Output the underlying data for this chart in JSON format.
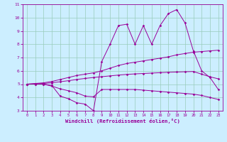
{
  "bg_color": "#cceeff",
  "line_color": "#990099",
  "grid_color": "#99ccbb",
  "xlim": [
    -0.5,
    23.5
  ],
  "ylim": [
    3,
    11
  ],
  "xticks": [
    0,
    1,
    2,
    3,
    4,
    5,
    6,
    7,
    8,
    9,
    10,
    11,
    12,
    13,
    14,
    15,
    16,
    17,
    18,
    19,
    20,
    21,
    22,
    23
  ],
  "yticks": [
    3,
    4,
    5,
    6,
    7,
    8,
    9,
    10,
    11
  ],
  "xlabel": "Windchill (Refroidissement éolien,°C)",
  "s1_x": [
    0,
    1,
    2,
    3,
    4,
    5,
    6,
    7,
    8,
    9,
    10,
    11,
    12,
    13,
    14,
    15,
    16,
    17,
    18,
    19,
    20,
    21,
    22,
    23
  ],
  "s1_y": [
    5.0,
    5.0,
    5.0,
    4.85,
    4.65,
    4.5,
    4.35,
    4.1,
    4.05,
    4.6,
    4.6,
    4.6,
    4.6,
    4.6,
    4.55,
    4.5,
    4.45,
    4.4,
    4.35,
    4.3,
    4.25,
    4.15,
    4.0,
    3.85
  ],
  "s2_x": [
    0,
    1,
    2,
    3,
    4,
    5,
    6,
    7,
    8,
    9,
    10,
    11,
    12,
    13,
    14,
    15,
    16,
    17,
    18,
    19,
    20,
    21,
    22,
    23
  ],
  "s2_y": [
    5.0,
    5.0,
    5.0,
    4.9,
    4.1,
    3.9,
    3.6,
    3.5,
    3.0,
    6.7,
    8.0,
    9.4,
    9.5,
    8.0,
    9.4,
    8.0,
    9.4,
    10.3,
    10.6,
    9.6,
    7.5,
    6.0,
    5.5,
    4.6
  ],
  "s3_x": [
    0,
    1,
    2,
    3,
    4,
    5,
    6,
    7,
    8,
    9,
    10,
    11,
    12,
    13,
    14,
    15,
    16,
    17,
    18,
    19,
    20,
    21,
    22,
    23
  ],
  "s3_y": [
    5.0,
    5.05,
    5.1,
    5.2,
    5.35,
    5.5,
    5.65,
    5.75,
    5.85,
    6.0,
    6.2,
    6.4,
    6.55,
    6.65,
    6.75,
    6.85,
    6.95,
    7.05,
    7.2,
    7.3,
    7.4,
    7.45,
    7.5,
    7.55
  ],
  "s4_x": [
    0,
    1,
    2,
    3,
    4,
    5,
    6,
    7,
    8,
    9,
    10,
    11,
    12,
    13,
    14,
    15,
    16,
    17,
    18,
    19,
    20,
    21,
    22,
    23
  ],
  "s4_y": [
    5.0,
    5.02,
    5.05,
    5.1,
    5.18,
    5.26,
    5.35,
    5.43,
    5.5,
    5.56,
    5.62,
    5.68,
    5.73,
    5.77,
    5.8,
    5.83,
    5.86,
    5.89,
    5.91,
    5.93,
    5.95,
    5.75,
    5.55,
    5.4
  ]
}
